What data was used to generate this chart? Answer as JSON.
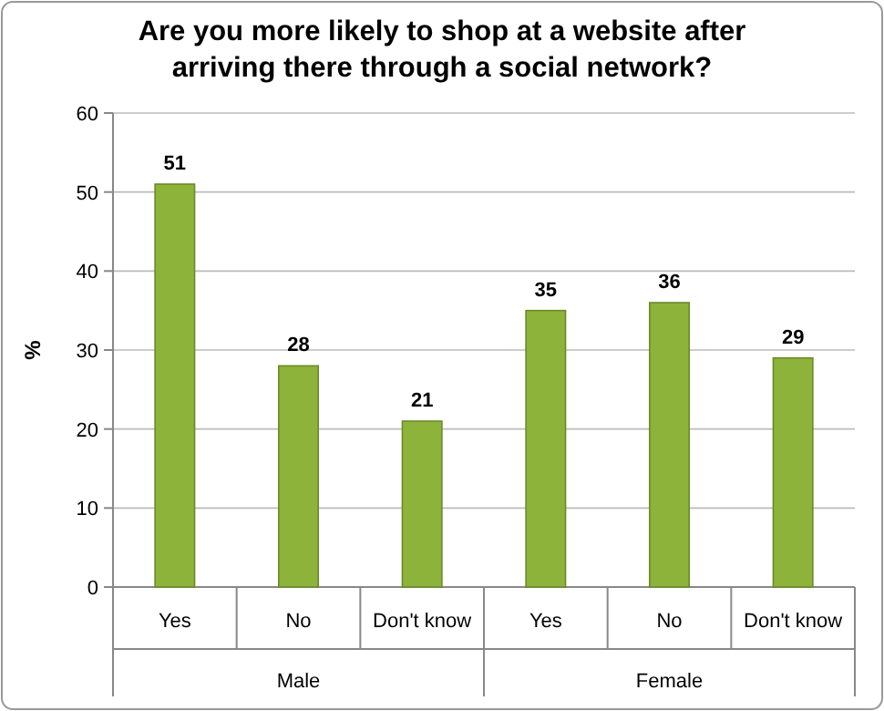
{
  "chart_data": {
    "type": "bar",
    "title": "Are you more likely to shop at a website after arriving there through a social network?",
    "ylabel": "%",
    "categories": [
      "Yes",
      "No",
      "Don't know",
      "Yes",
      "No",
      "Don't know"
    ],
    "values": [
      51,
      28,
      21,
      35,
      36,
      29
    ],
    "color": "#8db33a",
    "ylim": [
      0,
      60
    ],
    "yticks": [
      0,
      10,
      20,
      30,
      40,
      50,
      60
    ],
    "grid": "y",
    "data_labels": true,
    "annotations": [
      "Male",
      "Female"
    ]
  }
}
